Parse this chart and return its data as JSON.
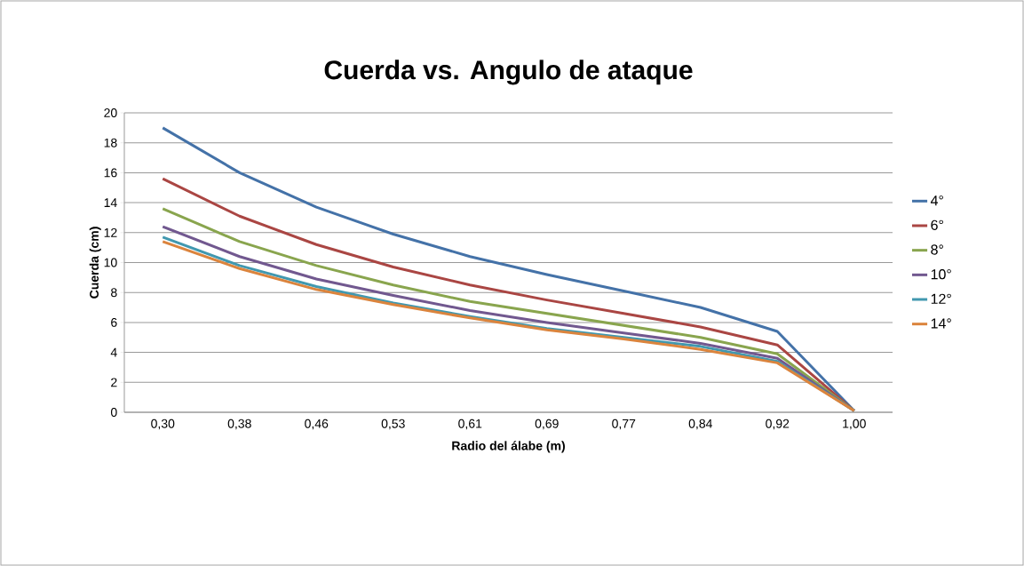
{
  "chart_data": {
    "type": "line",
    "title": "Cuerda vs. Angulo de ataque",
    "xlabel": "Radio del álabe (m)",
    "ylabel": "Cuerda (cm)",
    "categories": [
      "0,30",
      "0,38",
      "0,46",
      "0,53",
      "0,61",
      "0,69",
      "0,77",
      "0,84",
      "0,92",
      "1,00"
    ],
    "series": [
      {
        "name": "4°",
        "color": "#4472a8",
        "values": [
          19.0,
          16.0,
          13.7,
          11.9,
          10.4,
          9.2,
          8.1,
          7.0,
          5.4,
          0.1
        ]
      },
      {
        "name": "6°",
        "color": "#aa4643",
        "values": [
          15.6,
          13.1,
          11.2,
          9.7,
          8.5,
          7.5,
          6.6,
          5.7,
          4.5,
          0.1
        ]
      },
      {
        "name": "8°",
        "color": "#89a54e",
        "values": [
          13.6,
          11.4,
          9.8,
          8.5,
          7.4,
          6.6,
          5.8,
          5.0,
          3.9,
          0.1
        ]
      },
      {
        "name": "10°",
        "color": "#71588f",
        "values": [
          12.4,
          10.4,
          8.9,
          7.8,
          6.8,
          6.0,
          5.3,
          4.6,
          3.6,
          0.1
        ]
      },
      {
        "name": "12°",
        "color": "#4198af",
        "values": [
          11.7,
          9.8,
          8.4,
          7.3,
          6.4,
          5.6,
          5.0,
          4.4,
          3.4,
          0.1
        ]
      },
      {
        "name": "14°",
        "color": "#db843d",
        "values": [
          11.4,
          9.6,
          8.2,
          7.2,
          6.3,
          5.5,
          4.9,
          4.2,
          3.3,
          0.1
        ]
      }
    ],
    "ylim": [
      0,
      20
    ],
    "yticks": [
      0,
      2,
      4,
      6,
      8,
      10,
      12,
      14,
      16,
      18,
      20
    ],
    "grid": "y",
    "legend": "right",
    "marker": "none",
    "line_style": "solid"
  }
}
